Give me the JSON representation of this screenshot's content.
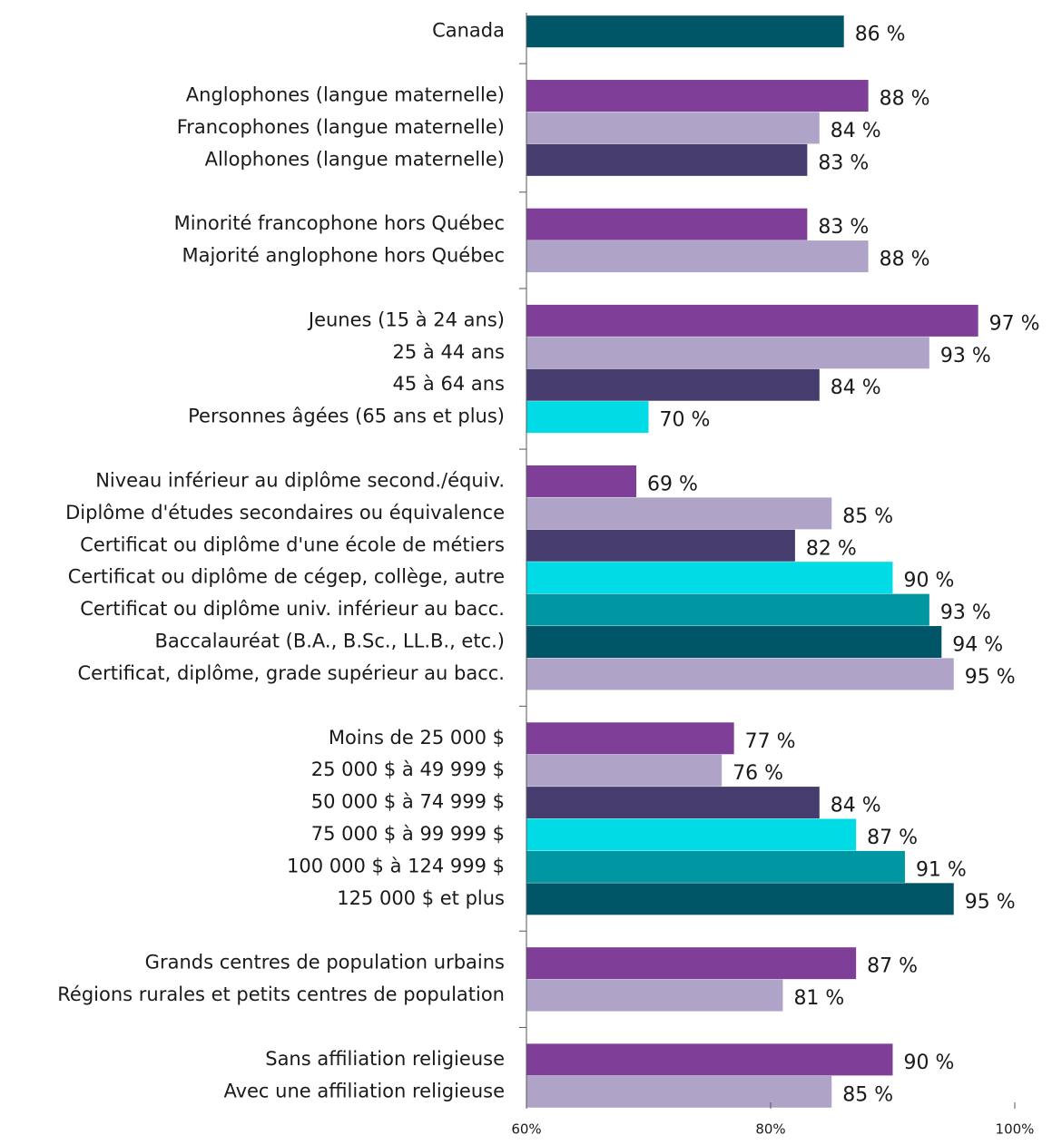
{
  "chart_data": {
    "type": "bar",
    "orientation": "horizontal",
    "categories": [
      "Canada",
      null,
      "Anglophones (langue maternelle)",
      "Francophones (langue maternelle)",
      "Allophones (langue maternelle)",
      null,
      "Minorité francophone hors Québec",
      "Majorité anglophone hors Québec",
      null,
      "Jeunes (15 à 24 ans)",
      "25 à 44 ans",
      "45 à 64 ans",
      "Personnes âgées (65 ans et plus)",
      null,
      "Niveau inférieur au diplôme second./équiv.",
      "Diplôme d'études secondaires ou équivalence",
      "Certificat ou diplôme d'une école de métiers",
      "Certificat ou diplôme de cégep, collège, autre",
      "Certificat ou diplôme univ. inférieur au bacc.",
      "Baccalauréat (B.A., B.Sc., LL.B., etc.)",
      "Certificat, diplôme, grade supérieur au bacc.",
      null,
      "Moins de 25 000 $",
      "25 000 $ à 49 999 $",
      "50 000 $ à 74 999 $",
      "75 000 $ à 99 999 $",
      "100 000 $ à 124 999 $",
      "125 000 $ et plus",
      null,
      "Grands centres de population urbains",
      "Régions rurales et petits centres de population",
      null,
      "Sans affiliation religieuse",
      "Avec une affiliation religieuse"
    ],
    "values": [
      86,
      null,
      88,
      84,
      83,
      null,
      83,
      88,
      null,
      97,
      93,
      84,
      70,
      null,
      69,
      85,
      82,
      90,
      93,
      94,
      95,
      null,
      77,
      76,
      84,
      87,
      91,
      95,
      null,
      87,
      81,
      null,
      90,
      85
    ],
    "value_labels": [
      "86 %",
      null,
      "88 %",
      "84 %",
      "83 %",
      null,
      "83 %",
      "88 %",
      null,
      "97 %",
      "93 %",
      "84 %",
      "70 %",
      null,
      "69 %",
      "85 %",
      "82 %",
      "90 %",
      "93 %",
      "94 %",
      "95 %",
      null,
      "77 %",
      "76 %",
      "84 %",
      "87 %",
      "91 %",
      "95 %",
      null,
      "87 %",
      "81 %",
      null,
      "90 %",
      "85 %"
    ],
    "colors": [
      "#005566",
      null,
      "#7f3f98",
      "#b0a3c8",
      "#463c6e",
      null,
      "#7f3f98",
      "#b0a3c8",
      null,
      "#7f3f98",
      "#b0a3c8",
      "#463c6e",
      "#00dbe5",
      null,
      "#7f3f98",
      "#b0a3c8",
      "#463c6e",
      "#00dbe5",
      "#0097a3",
      "#005566",
      "#b0a3c8",
      null,
      "#7f3f98",
      "#b0a3c8",
      "#463c6e",
      "#00dbe5",
      "#0097a3",
      "#005566",
      null,
      "#7f3f98",
      "#b0a3c8",
      null,
      "#7f3f98",
      "#b0a3c8"
    ],
    "xlim": [
      60,
      100
    ],
    "xticks": [
      {
        "value": 60,
        "label": "60%"
      },
      {
        "value": 80,
        "label": "80%"
      },
      {
        "value": 100,
        "label": "100%"
      }
    ]
  }
}
